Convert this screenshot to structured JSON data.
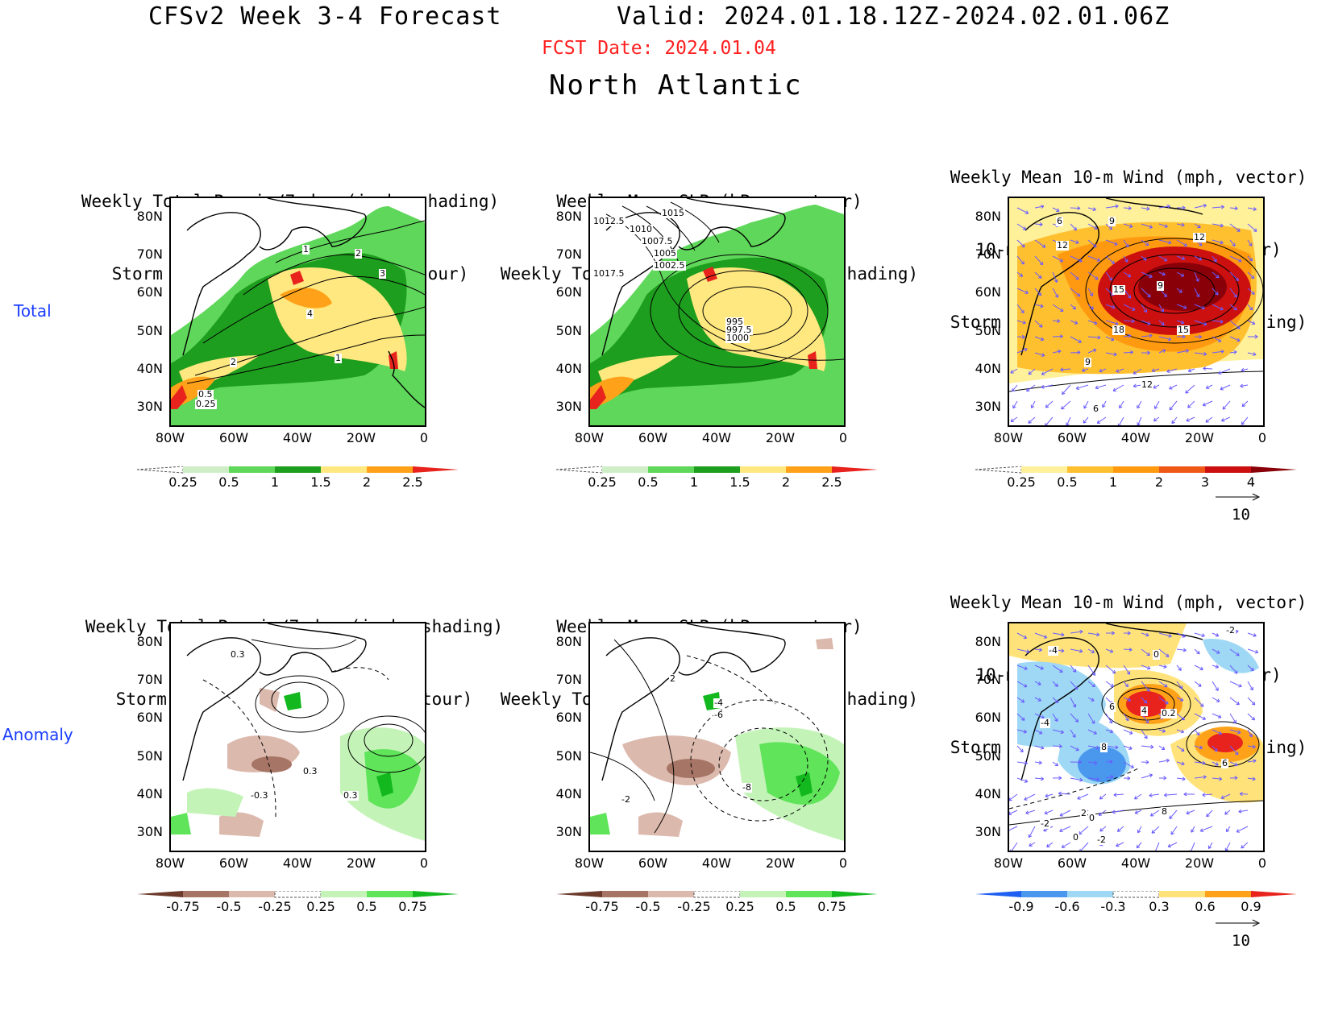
{
  "header": {
    "title": "CFSv2 Week 3-4 Forecast",
    "valid": "Valid: 2024.01.18.12Z-2024.02.01.06Z",
    "fcst_date": "FCST Date: 2024.01.04",
    "region": "North Atlantic"
  },
  "row_labels": {
    "total": "Total",
    "anomaly": "Anomaly"
  },
  "axes": {
    "lat_ticks": [
      "80N",
      "70N",
      "60N",
      "50N",
      "40N",
      "30N"
    ],
    "lon_ticks": [
      "80W",
      "60W",
      "40W",
      "20W",
      "0"
    ]
  },
  "panels": {
    "total_precip": {
      "line1": "Weekly Total Precip/7-day (inch, shading)",
      "line2": "Storm Track Density/7-day (contour)",
      "contour_labels": [
        "1",
        "2",
        "3",
        "4",
        "1",
        "2",
        "0.5",
        "0.25"
      ]
    },
    "total_slp": {
      "line1": "Weekly Mean SLP (hPa, contour)",
      "line2": "Weekly Total Precip/7-day (inch, shading)",
      "contour_labels": [
        "1015",
        "1012.5",
        "1010",
        "1007.5",
        "1005",
        "1002.5",
        "1017.5",
        "995",
        "997.5",
        "1000"
      ]
    },
    "total_wind": {
      "line1": "Weekly Mean 10-m Wind (mph, vector)",
      "line2": "10-m Wind Speed (mph, contour)",
      "line3": "Storm Track Density/7-day (shading)",
      "contour_labels": [
        "6",
        "9",
        "12",
        "12",
        "15",
        "9",
        "18",
        "15",
        "9",
        "12",
        "6"
      ]
    },
    "anom_precip": {
      "line1": "Weekly Total Precip/7-day (inch, shading)",
      "line2": "Storm Track Density/7-day (contour)",
      "contour_labels": [
        "0.3",
        "0.3",
        "-0.3",
        "0.3"
      ]
    },
    "anom_slp": {
      "line1": "Weekly Mean SLP (hPa, contour)",
      "line2": "Weekly Total Precip/7-day (inch, shading)",
      "contour_labels": [
        "2",
        "-4",
        "-6",
        "-8",
        "-2"
      ]
    },
    "anom_wind": {
      "line1": "Weekly Mean 10-m Wind (mph, vector)",
      "line2": "10-m Wind Speed (mph, contour)",
      "line3": "Storm Track Density/7-day (shading)",
      "contour_labels": [
        "-2",
        "-4",
        "0",
        "-4",
        "6",
        "4",
        "0.2",
        "8",
        "6",
        "8",
        "2",
        "0",
        "-2",
        "0",
        "-2"
      ]
    }
  },
  "colorbars": {
    "precip_total": {
      "labels": [
        "0.25",
        "0.5",
        "1",
        "1.5",
        "2",
        "2.5"
      ],
      "colors": [
        "#ffffff",
        "#cfeec8",
        "#5fd75a",
        "#1e9e1e",
        "#ffe880",
        "#ffa21a",
        "#e8231e"
      ]
    },
    "track_total": {
      "labels": [
        "0.25",
        "0.5",
        "1",
        "2",
        "3",
        "4"
      ],
      "colors": [
        "#ffffff",
        "#fff09a",
        "#ffc030",
        "#ff9a10",
        "#f05818",
        "#cc1010",
        "#8a0008"
      ]
    },
    "precip_anom": {
      "labels": [
        "-0.75",
        "-0.5",
        "-0.25",
        "0.25",
        "0.5",
        "0.75"
      ],
      "colors": [
        "#6b3a2a",
        "#a77565",
        "#dcb9ad",
        "#ffffff",
        "#c4f3b8",
        "#5fe45a",
        "#13b81e"
      ]
    },
    "track_anom": {
      "labels": [
        "-0.9",
        "-0.6",
        "-0.3",
        "0.3",
        "0.6",
        "0.9"
      ],
      "colors": [
        "#1e5ef0",
        "#4a98ee",
        "#9ed8f5",
        "#ffffff",
        "#ffe37a",
        "#ffa21a",
        "#e8231e"
      ]
    }
  },
  "vector_key": "10"
}
